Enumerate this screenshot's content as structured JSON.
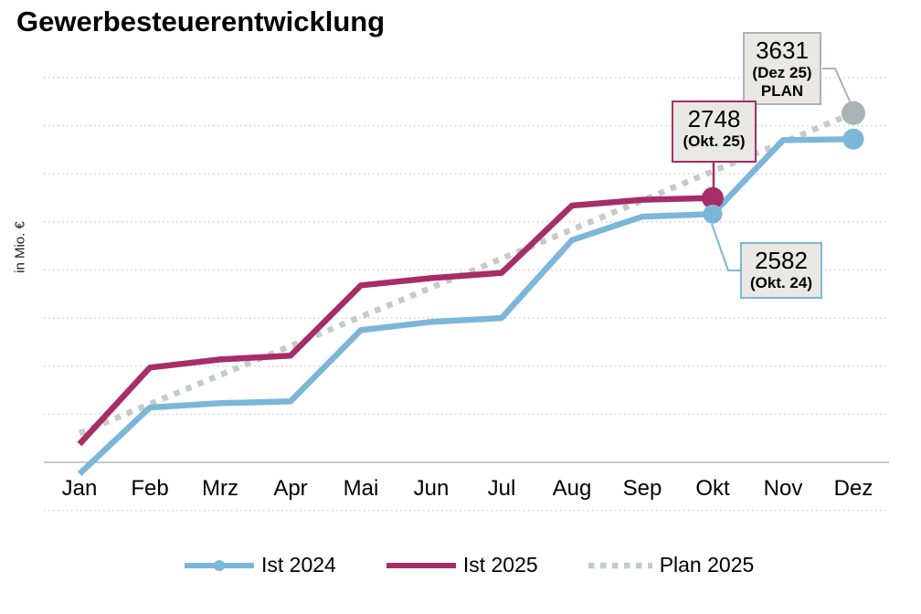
{
  "chart_data": {
    "type": "line",
    "title": "Gewerbesteuerentwicklung",
    "ylabel": "in Mio. €",
    "x": [
      "Jan",
      "Feb",
      "Mrz",
      "Apr",
      "Mai",
      "Jun",
      "Jul",
      "Aug",
      "Sep",
      "Okt",
      "Nov",
      "Dez"
    ],
    "ylim": [
      -500,
      4000
    ],
    "grid_step": 500,
    "grid": "dotted horizontal lines every 500, solid line at 0",
    "legend_position": "bottom",
    "series": [
      {
        "name": "Ist 2024",
        "key": "ist2024",
        "style": "solid",
        "values": [
          -120,
          570,
          615,
          635,
          1375,
          1460,
          1500,
          2310,
          2555,
          2582,
          3350,
          3360
        ]
      },
      {
        "name": "Ist 2025",
        "key": "ist2025",
        "style": "solid",
        "values": [
          190,
          985,
          1070,
          1110,
          1840,
          1915,
          1970,
          2670,
          2730,
          2748,
          null,
          null
        ]
      },
      {
        "name": "Plan 2025",
        "key": "plan2025",
        "style": "dashed",
        "values": [
          303,
          605,
          908,
          1210,
          1513,
          1816,
          2118,
          2421,
          2723,
          3026,
          3328,
          3631
        ]
      }
    ],
    "markers": [
      {
        "series": "Ist 2025",
        "month": "Okt",
        "radius": 12
      },
      {
        "series": "Ist 2024",
        "month": "Okt",
        "radius": 10.5
      },
      {
        "series": "Plan 2025",
        "month": "Dez",
        "radius": 13
      },
      {
        "series": "Ist 2024",
        "month": "Dez",
        "radius": 11.5
      }
    ],
    "annotations": [
      {
        "id": "plan",
        "value": "3631",
        "caption": "(Dez 25)",
        "caption2": "PLAN",
        "series": "Plan 2025",
        "month": "Dez"
      },
      {
        "id": "ist25",
        "value": "2748",
        "caption": "(Okt. 25)",
        "caption2": "",
        "series": "Ist 2025",
        "month": "Okt"
      },
      {
        "id": "ist24",
        "value": "2582",
        "caption": "(Okt. 24)",
        "caption2": "",
        "series": "Ist 2024",
        "month": "Okt"
      }
    ]
  },
  "legend": [
    {
      "label": "Ist 2024",
      "swatch": "line-with-dot-marker"
    },
    {
      "label": "Ist 2025",
      "swatch": "solid-line"
    },
    {
      "label": "Plan 2025",
      "swatch": "dotted-line"
    }
  ],
  "colors": {
    "ist2024": "#7cb6d9",
    "ist2025": "#a62d68",
    "plan2025": "#c7caca",
    "plan_marker": "#a9b2b7",
    "grid": "#d5d5d5",
    "axis": "#c0c0c0",
    "box_fill": "#e9e8e3",
    "text": "#000000"
  }
}
